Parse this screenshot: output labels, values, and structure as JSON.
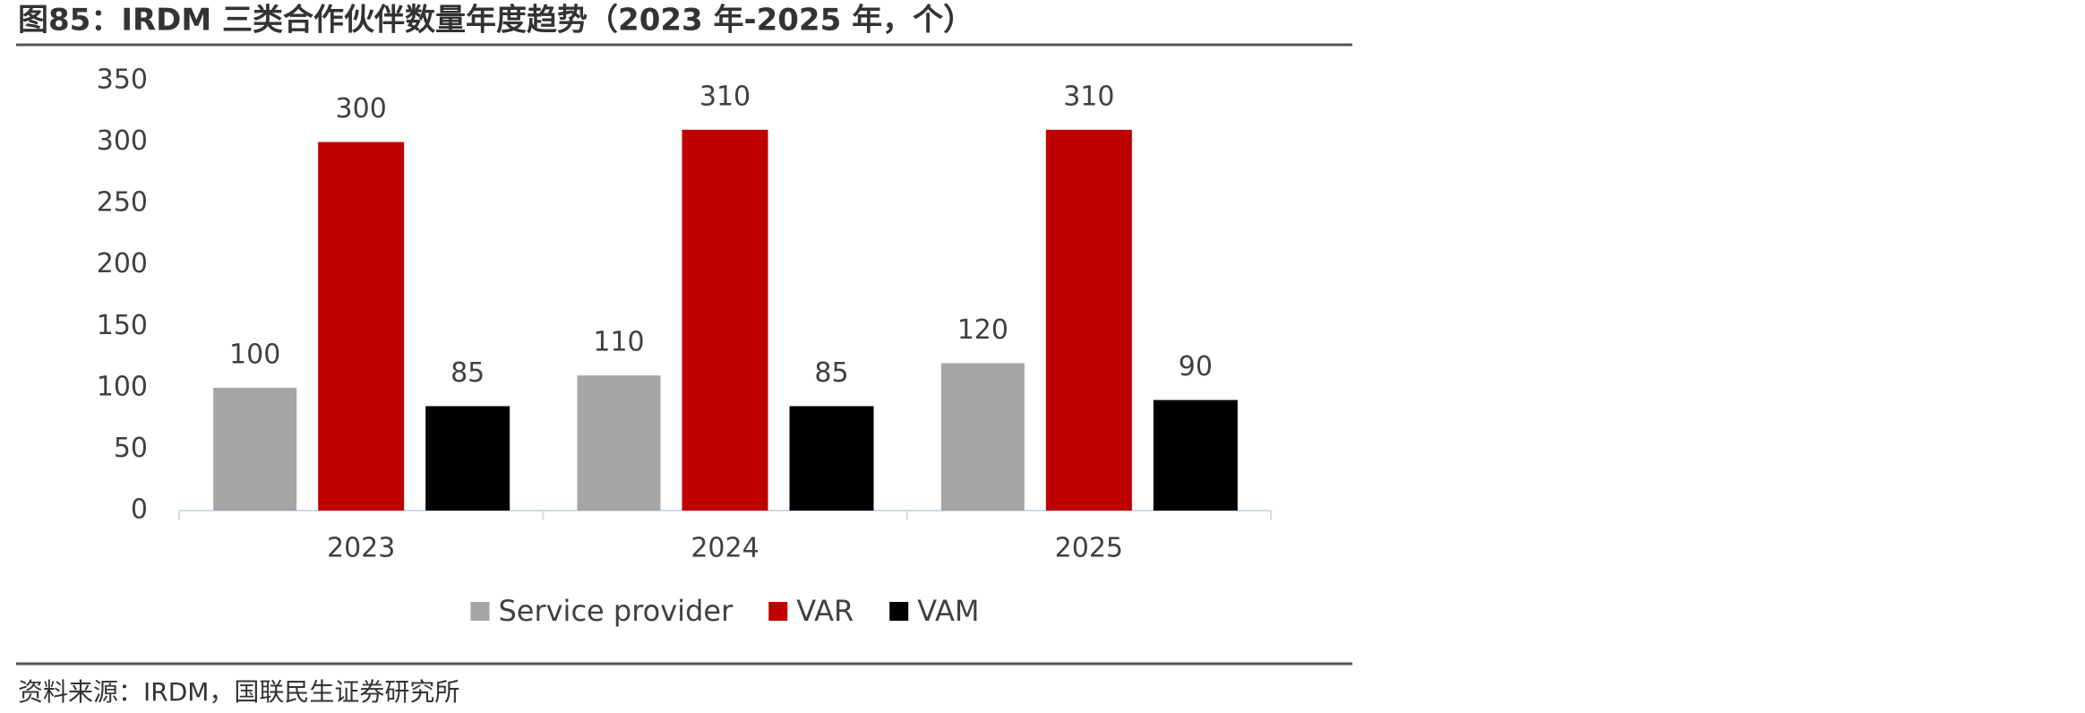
{
  "chart_data": {
    "type": "bar",
    "title": "图85：IRDM 三类合作伙伴数量年度趋势（2023 年-2025 年，个）",
    "source": "资料来源：IRDM，国联民生证券研究所",
    "categories": [
      "2023",
      "2024",
      "2025"
    ],
    "series": [
      {
        "name": "Service provider",
        "color": "#a5a5a5",
        "values": [
          100,
          110,
          120
        ]
      },
      {
        "name": "VAR",
        "color": "#c00000",
        "values": [
          300,
          310,
          310
        ]
      },
      {
        "name": "VAM",
        "color": "#000000",
        "values": [
          85,
          85,
          90
        ]
      }
    ],
    "ylim": [
      0,
      350
    ],
    "yticks": [
      0,
      50,
      100,
      150,
      200,
      250,
      300,
      350
    ],
    "grid": false,
    "legend": "bottom"
  }
}
